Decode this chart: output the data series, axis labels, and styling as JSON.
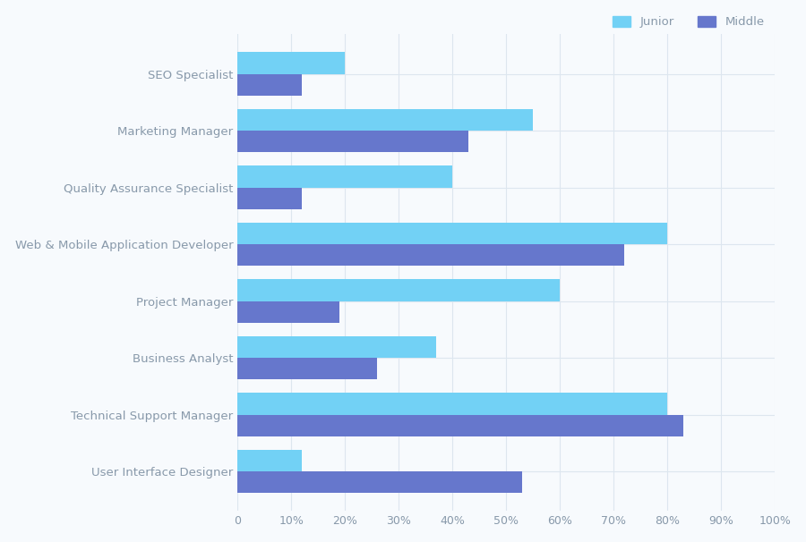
{
  "categories": [
    "User Interface Designer",
    "Technical Support Manager",
    "Business Analyst",
    "Project Manager",
    "Web & Mobile Application Developer",
    "Quality Assurance Specialist",
    "Marketing Manager",
    "SEO Specialist"
  ],
  "junior": [
    12,
    80,
    37,
    60,
    80,
    40,
    55,
    20
  ],
  "middle": [
    53,
    83,
    26,
    19,
    72,
    12,
    43,
    12
  ],
  "junior_color": "#72d1f5",
  "middle_color": "#6677cc",
  "background_color": "#f7fafd",
  "grid_color": "#dde6ef",
  "text_color": "#8899aa",
  "bar_height": 0.38,
  "xlim": [
    0,
    100
  ],
  "xticks": [
    0,
    10,
    20,
    30,
    40,
    50,
    60,
    70,
    80,
    90,
    100
  ],
  "xtick_labels": [
    "0",
    "10%",
    "20%",
    "30%",
    "40%",
    "50%",
    "60%",
    "70%",
    "80%",
    "90%",
    "100%"
  ],
  "legend_junior": "Junior",
  "legend_middle": "Middle",
  "label_fontsize": 9.5,
  "tick_fontsize": 9
}
